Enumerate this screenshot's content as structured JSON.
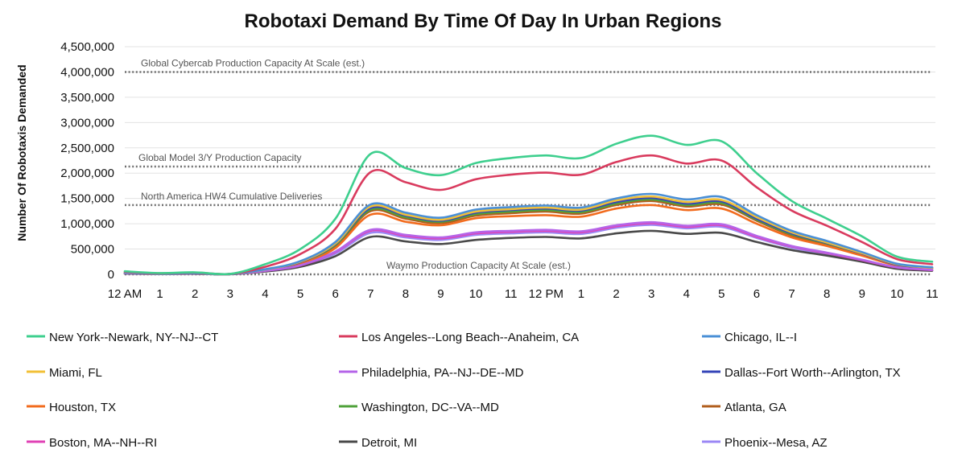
{
  "chart_data": {
    "type": "line",
    "title": "Robotaxi Demand By Time Of Day In Urban Regions",
    "xlabel": "",
    "ylabel": "Number Of Robotaxis Demanded",
    "ylim": [
      0,
      4500000
    ],
    "yticks": [
      0,
      500000,
      1000000,
      1500000,
      2000000,
      2500000,
      3000000,
      3500000,
      4000000,
      4500000
    ],
    "ytick_labels": [
      "0",
      "500,000",
      "1,000,000",
      "1,500,000",
      "2,000,000",
      "2,500,000",
      "3,000,000",
      "3,500,000",
      "4,000,000",
      "4,500,000"
    ],
    "categories": [
      "12 AM",
      "1",
      "2",
      "3",
      "4",
      "5",
      "6",
      "7",
      "8",
      "9",
      "10",
      "11",
      "12 PM",
      "1",
      "2",
      "3",
      "4",
      "5",
      "6",
      "7",
      "8",
      "9",
      "10",
      "11"
    ],
    "reference_lines": [
      {
        "label": "Global Cybercab Production Capacity At Scale (est.)",
        "value": 4000000
      },
      {
        "label": "Global Model 3/Y Production Capacity",
        "value": 2130000
      },
      {
        "label": "North America HW4 Cumulative Deliveries",
        "value": 1370000
      },
      {
        "label": "Waymo Production Capacity At Scale (est.)",
        "value": 0
      }
    ],
    "legend_position": "bottom",
    "series": [
      {
        "name": "New York--Newark, NY--NJ--CT",
        "color": "#3ecf8e",
        "values": [
          60000,
          25000,
          40000,
          10000,
          200000,
          500000,
          1100000,
          2380000,
          2100000,
          1960000,
          2200000,
          2300000,
          2350000,
          2300000,
          2580000,
          2740000,
          2560000,
          2630000,
          2000000,
          1450000,
          1100000,
          750000,
          350000,
          250000
        ]
      },
      {
        "name": "Los Angeles--Long Beach--Anaheim, CA",
        "color": "#d93b5e",
        "values": [
          50000,
          20000,
          35000,
          8000,
          150000,
          400000,
          900000,
          2020000,
          1820000,
          1670000,
          1880000,
          1970000,
          2010000,
          1970000,
          2220000,
          2350000,
          2190000,
          2250000,
          1720000,
          1260000,
          960000,
          640000,
          300000,
          200000
        ]
      },
      {
        "name": "Chicago, IL--I",
        "color": "#4a8fd6",
        "values": [
          30000,
          12000,
          20000,
          5000,
          100000,
          260000,
          640000,
          1380000,
          1220000,
          1120000,
          1280000,
          1330000,
          1360000,
          1320000,
          1500000,
          1590000,
          1480000,
          1530000,
          1170000,
          860000,
          660000,
          440000,
          210000,
          140000
        ]
      },
      {
        "name": "Miami, FL",
        "color": "#f2c037",
        "values": [
          28000,
          11000,
          19000,
          5000,
          95000,
          250000,
          610000,
          1340000,
          1180000,
          1080000,
          1240000,
          1290000,
          1320000,
          1280000,
          1460000,
          1540000,
          1430000,
          1470000,
          1130000,
          830000,
          630000,
          420000,
          200000,
          130000
        ]
      },
      {
        "name": "Philadelphia, PA--NJ--DE--MD",
        "color": "#b564e8",
        "values": [
          20000,
          8000,
          14000,
          4000,
          70000,
          180000,
          450000,
          880000,
          780000,
          730000,
          830000,
          860000,
          880000,
          850000,
          970000,
          1030000,
          960000,
          990000,
          760000,
          560000,
          430000,
          290000,
          140000,
          90000
        ]
      },
      {
        "name": "Dallas--Fort Worth--Arlington, TX",
        "color": "#3545b8",
        "values": [
          27000,
          10000,
          18000,
          5000,
          92000,
          240000,
          600000,
          1310000,
          1160000,
          1060000,
          1220000,
          1270000,
          1300000,
          1260000,
          1430000,
          1510000,
          1400000,
          1440000,
          1100000,
          810000,
          620000,
          410000,
          190000,
          130000
        ]
      },
      {
        "name": "Houston, TX",
        "color": "#f26b1d",
        "values": [
          24000,
          9000,
          16000,
          4000,
          80000,
          210000,
          520000,
          1180000,
          1040000,
          970000,
          1110000,
          1150000,
          1170000,
          1140000,
          1300000,
          1370000,
          1270000,
          1300000,
          1000000,
          730000,
          560000,
          370000,
          175000,
          115000
        ]
      },
      {
        "name": "Washington, DC--VA--MD",
        "color": "#4fa23a",
        "values": [
          26000,
          10000,
          17000,
          5000,
          88000,
          230000,
          580000,
          1280000,
          1130000,
          1040000,
          1190000,
          1240000,
          1270000,
          1230000,
          1400000,
          1480000,
          1370000,
          1410000,
          1080000,
          790000,
          610000,
          400000,
          185000,
          125000
        ]
      },
      {
        "name": "Atlanta, GA",
        "color": "#b05e1c",
        "values": [
          25000,
          9500,
          16500,
          4500,
          85000,
          225000,
          560000,
          1250000,
          1100000,
          1010000,
          1160000,
          1210000,
          1240000,
          1200000,
          1370000,
          1450000,
          1340000,
          1380000,
          1060000,
          770000,
          590000,
          390000,
          180000,
          120000
        ]
      },
      {
        "name": "Boston, MA--NH--RI",
        "color": "#e042b5",
        "values": [
          20000,
          8000,
          13000,
          4000,
          68000,
          175000,
          440000,
          860000,
          760000,
          710000,
          810000,
          840000,
          860000,
          830000,
          950000,
          1010000,
          940000,
          970000,
          740000,
          550000,
          420000,
          280000,
          135000,
          85000
        ]
      },
      {
        "name": "Detroit, MI",
        "color": "#4a4a4a",
        "values": [
          15000,
          6000,
          10000,
          3000,
          55000,
          150000,
          360000,
          740000,
          650000,
          600000,
          680000,
          720000,
          740000,
          710000,
          810000,
          860000,
          800000,
          820000,
          640000,
          480000,
          370000,
          250000,
          110000,
          70000
        ]
      },
      {
        "name": "Phoenix--Mesa, AZ",
        "color": "#9b87f5",
        "values": [
          18000,
          7000,
          12000,
          3500,
          62000,
          165000,
          410000,
          820000,
          730000,
          680000,
          780000,
          810000,
          830000,
          800000,
          920000,
          980000,
          910000,
          940000,
          720000,
          530000,
          400000,
          270000,
          125000,
          80000
        ]
      }
    ]
  }
}
